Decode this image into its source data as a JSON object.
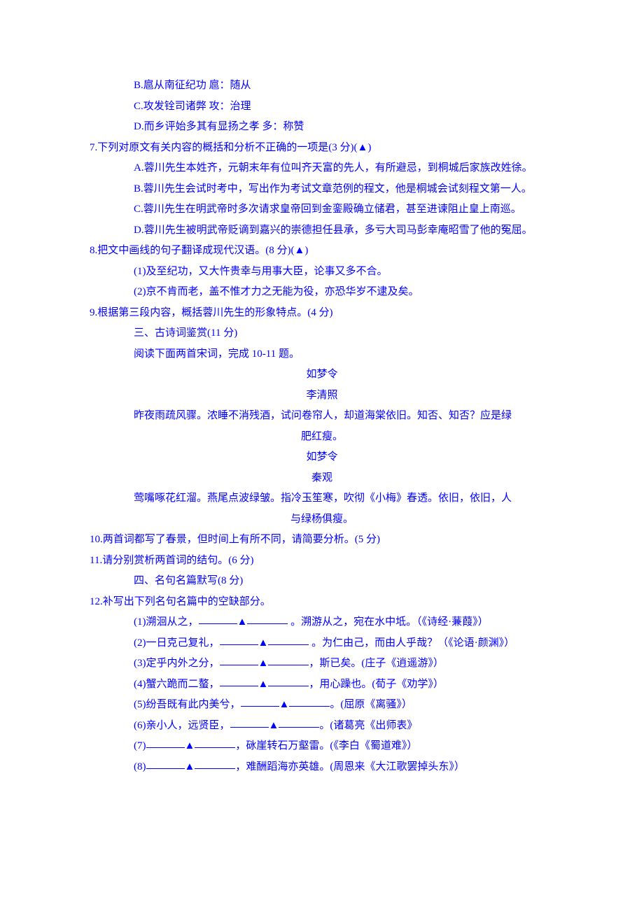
{
  "text_color": "#0000ff",
  "background_color": "#ffffff",
  "font_size": 15,
  "line_height": 29.5,
  "triangle": "▲",
  "lines": {
    "b": "B.扈从南征纪功           扈：随从",
    "c": "C.攻发铨司诸弊           攻：治理",
    "d": "D.而乡评始多其有显扬之孝 多：称赞",
    "q7": "7.下列对原文有关内容的概括和分析不正确的一项是(3 分)(▲)",
    "q7a": "A.蓉川先生本姓齐，元朝末年有位叫齐天富的先人，有所避忌，到桐城后家族改姓徐。",
    "q7b": "B.蓉川先生会试时考中，写出作为考试文章范例的程文，他是桐城会试刻程文第一人。",
    "q7c": "C.蓉川先生在明武帝时多次请求皇帝回到金銮殿确立储君，甚至进谏阻止皇上南巡。",
    "q7d": "D.蓉川先生被明武帝贬谪到嘉兴的崇德担任县承，多亏大司马彭幸庵昭雪了他的冤屈。",
    "q8": "8.把文中画线的句子翻译成现代汉语。(8 分)(▲)",
    "q8_1": "(1)及至纪功，又大忤贵幸与用事大臣，论事又多不合。",
    "q8_2": "(2)京不肯而老，盖不惟才力之无能为役，亦恐华岁不逮及矣。",
    "q9": "9.根据第三段内容，概括蓉川先生的形象特点。(4 分)",
    "section3": "三、古诗词鉴赏(11 分)",
    "read_prompt": "阅读下面两首宋词，完成 10-11 题。",
    "poem1_title": "如梦令",
    "poem1_author": "李清照",
    "poem1_line1": "昨夜雨疏风骤。浓睡不消残酒，试问卷帘人，却道海棠依旧。知否、知否？应是绿",
    "poem1_line2": "肥红瘦。",
    "poem2_title": "如梦令",
    "poem2_author": "秦观",
    "poem2_line1": "莺嘴啄花红溜。燕尾点波绿皱。指冷玉笙寒，吹彻《小梅》春透。依旧，依旧，人",
    "poem2_line2": "与绿杨俱瘦。",
    "q10": "10.两首词都写了春景，但时间上有所不同，请简要分析。(5 分)",
    "q11": "11.请分别赏析两首词的结句。(6 分)",
    "section4": "四、名句名篇默写(8 分)",
    "q12": "12.补写出下列名句名篇中的空缺部分。",
    "q12_1a": "(1)溯洄从之，",
    "q12_1b": " 。溯游从之，宛在水中坻。（《诗经·蒹葭》）",
    "q12_2a": "(2)一日克己复礼，",
    "q12_2b": " 。为仁由己，而由人乎哉？（《论语·颜渊》）",
    "q12_3a": "(3)定乎内外之分，",
    "q12_3b": "，斯已矣。(庄子《逍遥游》）",
    "q12_4a": "(4)蟹六跪而二螯，",
    "q12_4b": "，用心躁也。(荀子《劝学》）",
    "q12_5a": "(5)纷吾既有此内美兮，",
    "q12_5b": "。(屈原《离骚》）",
    "q12_6a": "(6)亲小人，远贤臣，",
    "q12_6b": "。(诸葛亮《出师表》",
    "q12_7a": "(7)",
    "q12_7b": "，砯崖转石万壑雷。(《李白《蜀道难》）",
    "q12_8a": "(8)",
    "q12_8b": "，难酬蹈海亦英雄。(周恩来《大江歌罢掉头东》）"
  }
}
